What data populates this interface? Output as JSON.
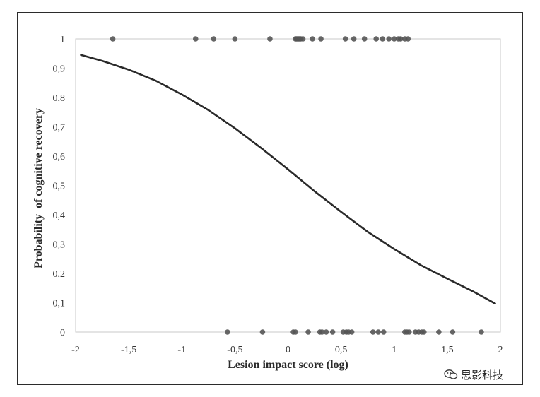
{
  "chart_data": {
    "type": "scatter",
    "title": "",
    "xlabel": "Lesion impact score (log)",
    "ylabel": "Probability  of cognitive recovery",
    "xlim": [
      -2,
      2
    ],
    "ylim": [
      0,
      1
    ],
    "x_ticks": [
      "-2",
      "-1,5",
      "-1",
      "-0,5",
      "0",
      "0,5",
      "1",
      "1,5",
      "2"
    ],
    "y_ticks": [
      "0",
      "0,1",
      "0,2",
      "0,3",
      "0,4",
      "0,5",
      "0,6",
      "0,7",
      "0,8",
      "0,9",
      "1"
    ],
    "grid": false,
    "series": [
      {
        "type": "line",
        "color": "#2a2a2a",
        "x": [
          -1.95,
          -1.75,
          -1.5,
          -1.25,
          -1.0,
          -0.75,
          -0.5,
          -0.25,
          0.0,
          0.25,
          0.5,
          0.75,
          1.0,
          1.25,
          1.5,
          1.75,
          1.95
        ],
        "y": [
          0.945,
          0.925,
          0.895,
          0.858,
          0.81,
          0.757,
          0.695,
          0.627,
          0.555,
          0.48,
          0.41,
          0.342,
          0.283,
          0.228,
          0.182,
          0.137,
          0.097
        ]
      },
      {
        "type": "scatter",
        "color": "#555555",
        "x": [
          -1.65,
          -0.87,
          -0.7,
          -0.5,
          -0.17,
          0.07,
          0.08,
          0.09,
          0.1,
          0.11,
          0.12,
          0.14,
          0.23,
          0.31,
          0.54,
          0.62,
          0.72,
          0.83,
          0.89,
          0.95,
          1.0,
          1.04,
          1.06,
          1.1,
          1.13
        ],
        "y": [
          1,
          1,
          1,
          1,
          1,
          1,
          1,
          1,
          1,
          1,
          1,
          1,
          1,
          1,
          1,
          1,
          1,
          1,
          1,
          1,
          1,
          1,
          1,
          1,
          1
        ]
      },
      {
        "type": "scatter",
        "color": "#555555",
        "x": [
          -0.57,
          -0.24,
          0.05,
          0.07,
          0.19,
          0.3,
          0.32,
          0.36,
          0.42,
          0.52,
          0.55,
          0.57,
          0.6,
          0.8,
          0.85,
          0.9,
          1.1,
          1.12,
          1.14,
          1.2,
          1.23,
          1.26,
          1.28,
          1.42,
          1.55,
          1.82
        ],
        "y": [
          0,
          0,
          0,
          0,
          0,
          0,
          0,
          0,
          0,
          0,
          0,
          0,
          0,
          0,
          0,
          0,
          0,
          0,
          0,
          0,
          0,
          0,
          0,
          0,
          0,
          0
        ]
      }
    ]
  },
  "watermark": {
    "icon": "wechat-icon",
    "text": "思影科技"
  }
}
